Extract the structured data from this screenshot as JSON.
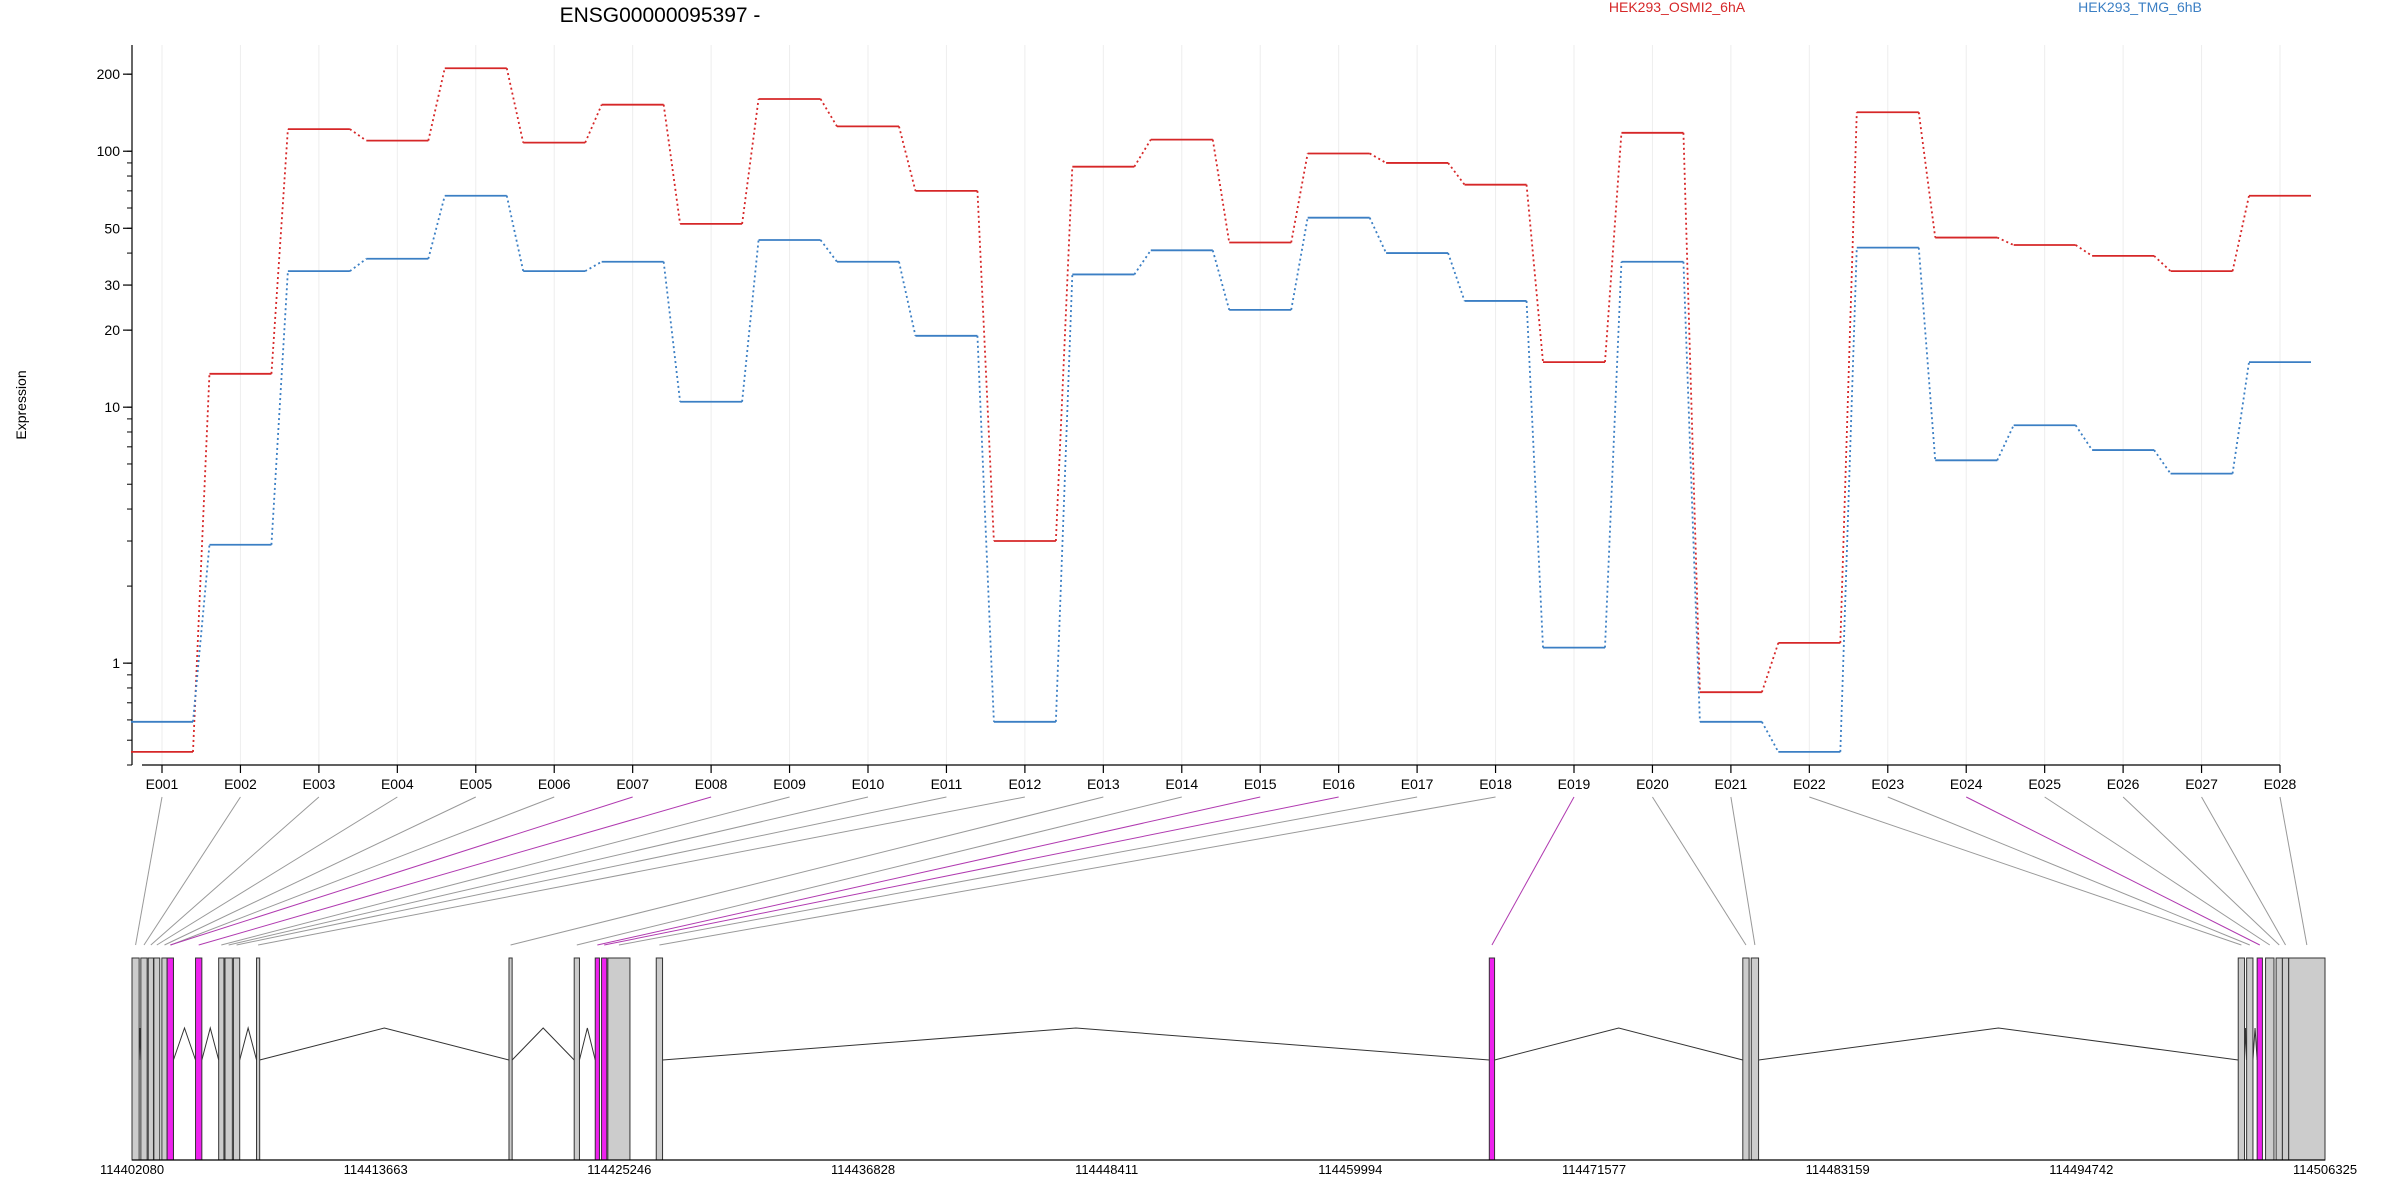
{
  "chart_data": {
    "type": "line",
    "title": "ENSG00000095397 -",
    "xlabel": "",
    "ylabel": "Expression",
    "y_scale": "log",
    "ylim": [
      0.4,
      260
    ],
    "yticks": [
      {
        "value": 200,
        "label": "200"
      },
      {
        "value": 100,
        "label": "100"
      },
      {
        "value": 50,
        "label": "50"
      },
      {
        "value": 30,
        "label": "30"
      },
      {
        "value": 20,
        "label": "20"
      },
      {
        "value": 10,
        "label": "10"
      },
      {
        "value": 1,
        "label": "1"
      }
    ],
    "categories": [
      "E001",
      "E002",
      "E003",
      "E004",
      "E005",
      "E006",
      "E007",
      "E008",
      "E009",
      "E010",
      "E011",
      "E012",
      "E013",
      "E014",
      "E015",
      "E016",
      "E017",
      "E018",
      "E019",
      "E020",
      "E021",
      "E022",
      "E023",
      "E024",
      "E025",
      "E026",
      "E027",
      "E028"
    ],
    "series": [
      {
        "name": "HEK293_OSMI2_6hA",
        "color": "#d62728",
        "values": [
          0.45,
          13.5,
          122,
          110,
          211,
          108,
          152,
          52,
          160,
          125,
          70,
          3.0,
          87,
          111,
          44,
          98,
          90,
          74,
          15,
          118,
          0.77,
          1.2,
          142,
          46,
          43,
          39,
          34,
          67
        ]
      },
      {
        "name": "HEK293_TMG_6hB",
        "color": "#3b7fc4",
        "values": [
          0.59,
          2.9,
          34,
          38,
          67,
          34,
          37,
          10.5,
          45,
          37,
          19,
          0.59,
          33,
          41,
          24,
          55,
          40,
          26,
          1.15,
          37,
          0.59,
          0.45,
          42,
          6.2,
          8.5,
          6.8,
          5.5,
          15
        ]
      }
    ],
    "highlighted_exons": [
      "E007",
      "E008",
      "E015",
      "E016",
      "E019",
      "E024"
    ],
    "genomic_axis": {
      "range": [
        114402080,
        114506325
      ],
      "tick_labels": [
        "114402080",
        "114413663",
        "114425246",
        "114436828",
        "114448411",
        "114459994",
        "114471577",
        "114483159",
        "114494742",
        "114506325"
      ]
    },
    "grid": "vertical",
    "legend_placement": "top-right"
  },
  "colors": {
    "highlight": "#ee22ee",
    "exon_fill": "#cccccc",
    "connector": "#999999"
  }
}
